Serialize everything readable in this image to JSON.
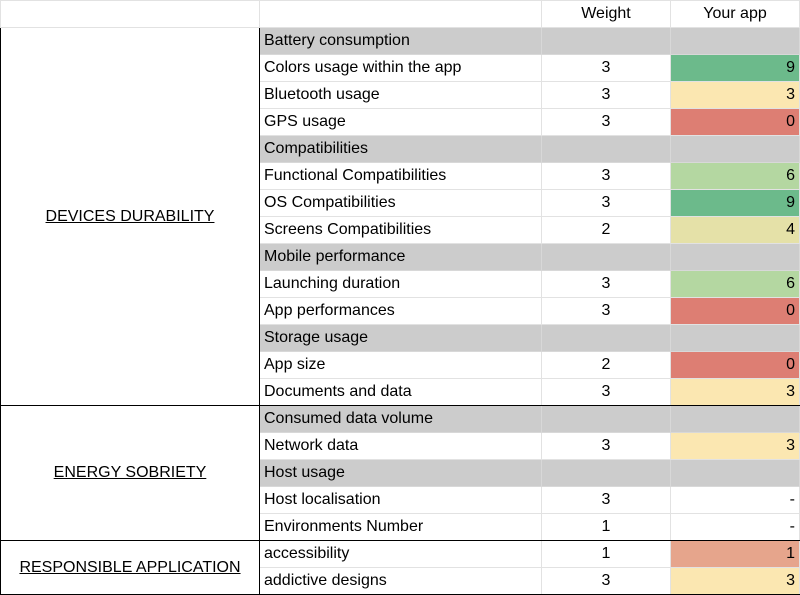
{
  "header": {
    "weight": "Weight",
    "your_app": "Your app"
  },
  "colors": {
    "category_bg": "#cccccc",
    "score_9": "#6cba8b",
    "score_6": "#b4d7a1",
    "score_4": "#e5e1a8",
    "score_3": "#fbe7b1",
    "score_1": "#e6a58c",
    "score_0": "#dd7e73"
  },
  "sections": [
    {
      "name": "DEVICES DURABILITY",
      "rows": [
        {
          "type": "category",
          "label": "Battery consumption"
        },
        {
          "type": "item",
          "label": "Colors usage within the app",
          "weight": "3",
          "score": "9",
          "color": "#6cba8b"
        },
        {
          "type": "item",
          "label": "Bluetooth usage",
          "weight": "3",
          "score": "3",
          "color": "#fbe7b1"
        },
        {
          "type": "item",
          "label": "GPS usage",
          "weight": "3",
          "score": "0",
          "color": "#dd7e73"
        },
        {
          "type": "category",
          "label": "Compatibilities"
        },
        {
          "type": "item",
          "label": "Functional Compatibilities",
          "weight": "3",
          "score": "6",
          "color": "#b4d7a1"
        },
        {
          "type": "item",
          "label": "OS Compatibilities",
          "weight": "3",
          "score": "9",
          "color": "#6cba8b"
        },
        {
          "type": "item",
          "label": "Screens Compatibilities",
          "weight": "2",
          "score": "4",
          "color": "#e5e1a8"
        },
        {
          "type": "category",
          "label": "Mobile performance"
        },
        {
          "type": "item",
          "label": "Launching duration",
          "weight": "3",
          "score": "6",
          "color": "#b4d7a1"
        },
        {
          "type": "item",
          "label": "App performances",
          "weight": "3",
          "score": "0",
          "color": "#dd7e73"
        },
        {
          "type": "category",
          "label": "Storage usage"
        },
        {
          "type": "item",
          "label": "App size",
          "weight": "2",
          "score": "0",
          "color": "#dd7e73"
        },
        {
          "type": "item",
          "label": "Documents and data",
          "weight": "3",
          "score": "3",
          "color": "#fbe7b1"
        }
      ]
    },
    {
      "name": "ENERGY SOBRIETY",
      "rows": [
        {
          "type": "category",
          "label": "Consumed data volume"
        },
        {
          "type": "item",
          "label": "Network data",
          "weight": "3",
          "score": "3",
          "color": "#fbe7b1"
        },
        {
          "type": "category",
          "label": "Host usage"
        },
        {
          "type": "item",
          "label": "Host localisation",
          "weight": "3",
          "score": "-",
          "color": ""
        },
        {
          "type": "item",
          "label": "Environments Number",
          "weight": "1",
          "score": "-",
          "color": ""
        }
      ]
    },
    {
      "name": "RESPONSIBLE APPLICATION",
      "rows": [
        {
          "type": "item",
          "label": "accessibility",
          "weight": "1",
          "score": "1",
          "color": "#e6a58c"
        },
        {
          "type": "item",
          "label": "addictive designs",
          "weight": "3",
          "score": "3",
          "color": "#fbe7b1"
        }
      ]
    }
  ]
}
